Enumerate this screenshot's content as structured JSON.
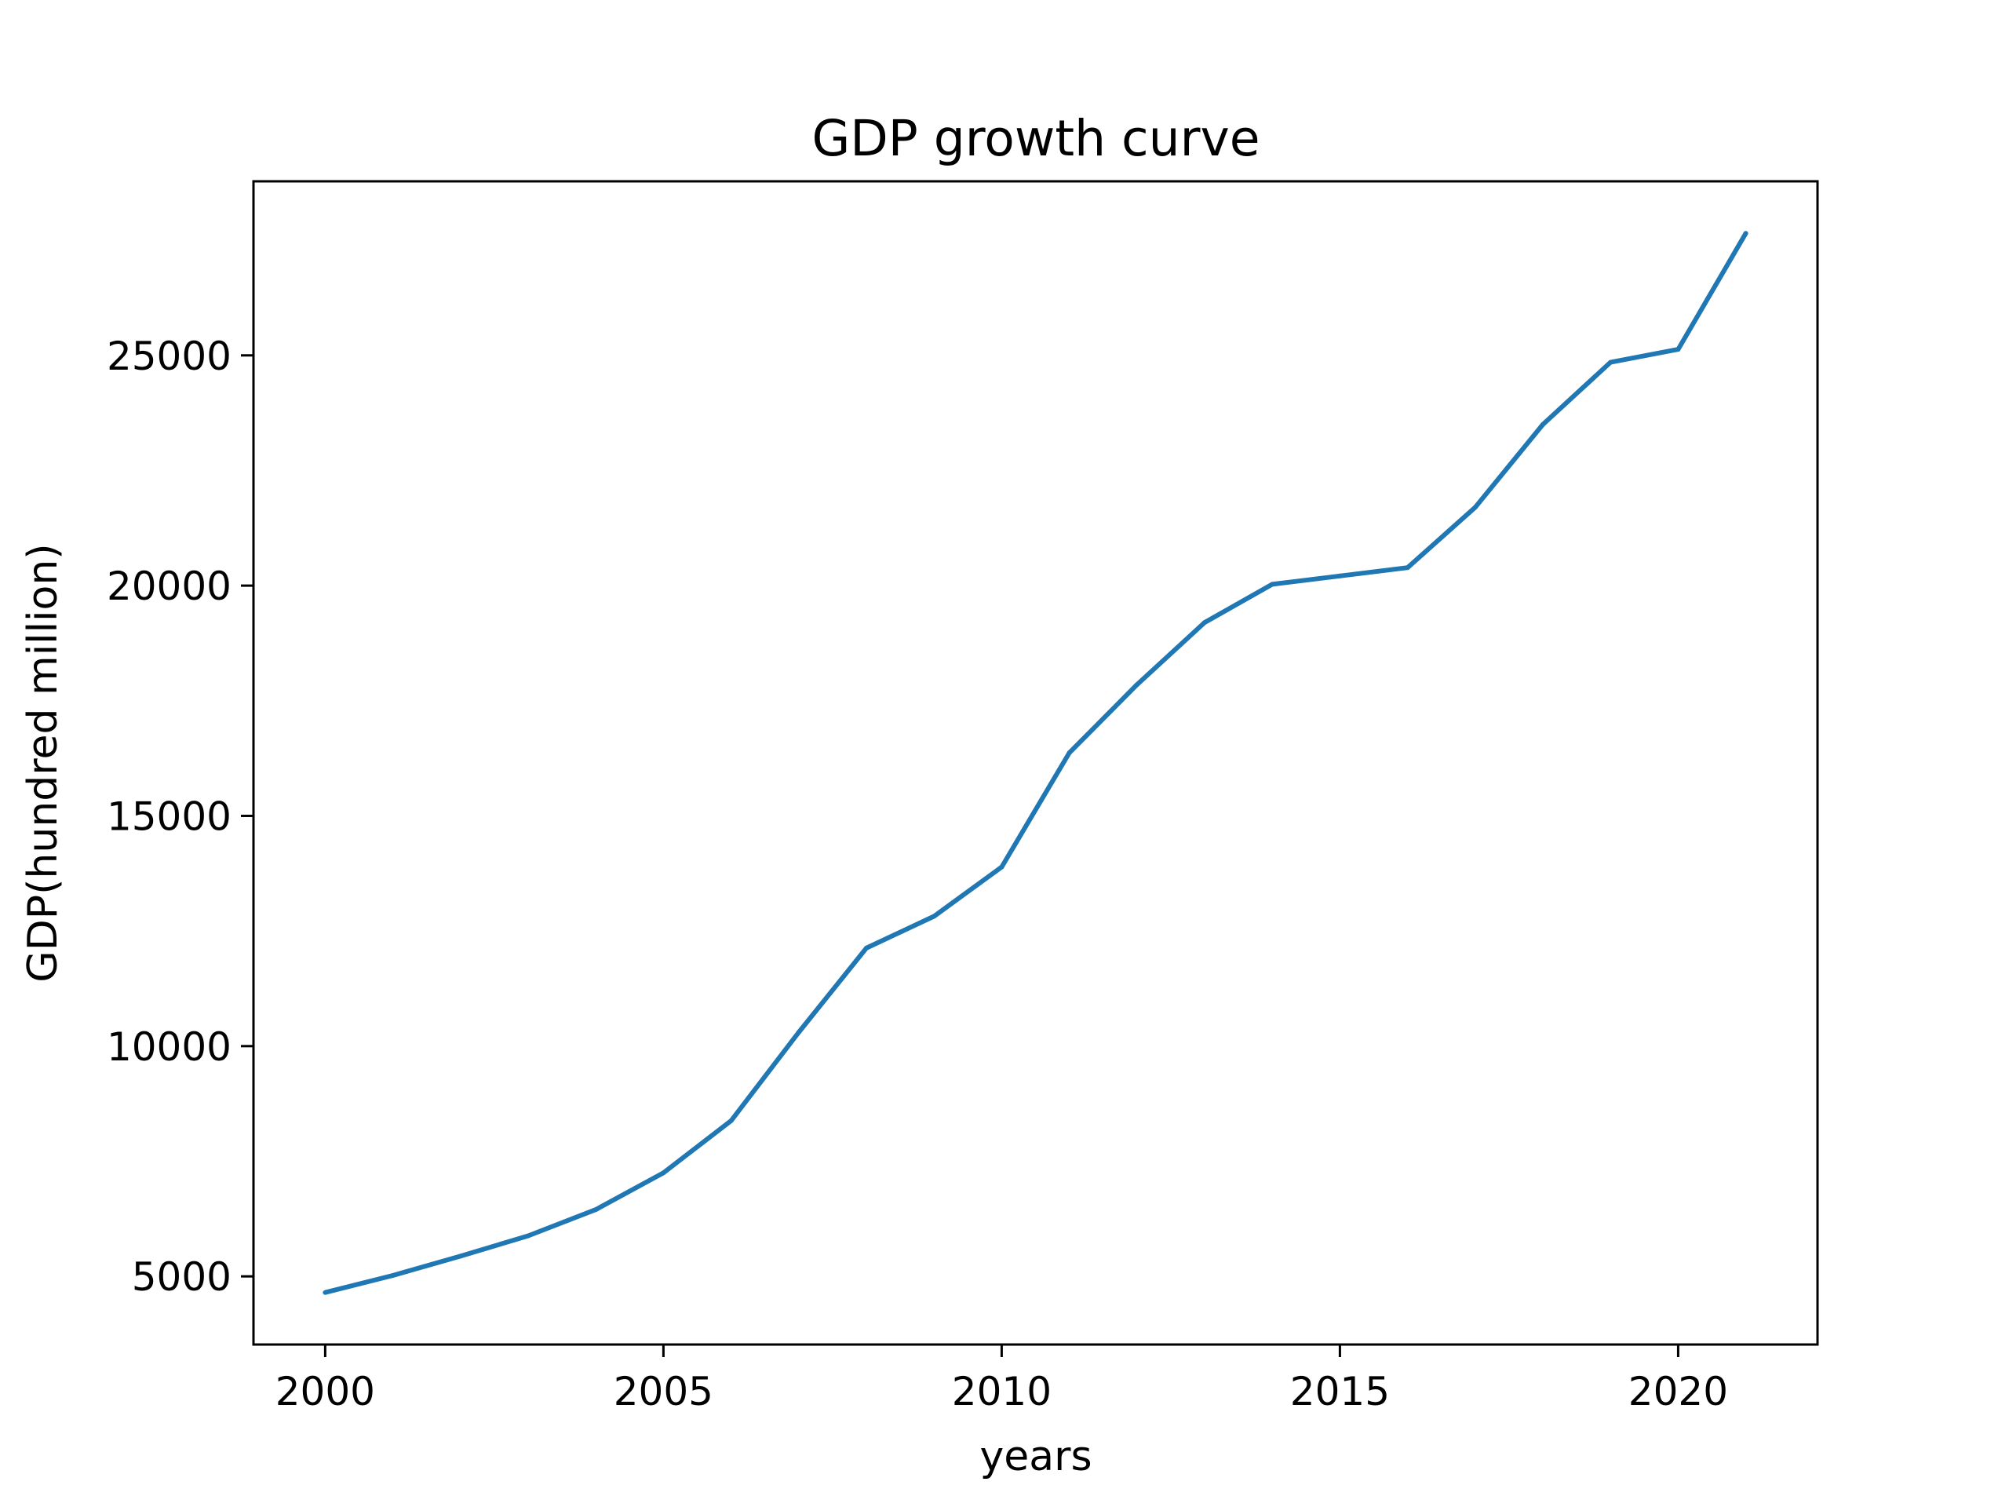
{
  "chart_data": {
    "type": "line",
    "title": "GDP growth curve",
    "xlabel": "years",
    "ylabel": "GDP(hundred million)",
    "x": [
      2000,
      2001,
      2002,
      2003,
      2004,
      2005,
      2006,
      2007,
      2008,
      2009,
      2010,
      2011,
      2012,
      2013,
      2014,
      2015,
      2016,
      2017,
      2018,
      2019,
      2020,
      2021
    ],
    "series": [
      {
        "values": [
          4650,
          5020,
          5440,
          5880,
          6450,
          7250,
          8380,
          10300,
          12130,
          12820,
          13890,
          16370,
          17850,
          19200,
          20030,
          20210,
          20390,
          21700,
          23500,
          24850,
          25130,
          27650
        ],
        "color": "#1f77b4"
      }
    ],
    "xlim": [
      1998.94,
      2022.06
    ],
    "ylim": [
      3520,
      28780
    ],
    "xticks": [
      2000,
      2005,
      2010,
      2015,
      2020
    ],
    "yticks": [
      5000,
      10000,
      15000,
      20000,
      25000
    ],
    "xtick_labels": [
      "2000",
      "2005",
      "2010",
      "2015",
      "2020"
    ],
    "ytick_labels": [
      "5000",
      "10000",
      "15000",
      "20000",
      "25000"
    ],
    "grid": false,
    "legend": "none"
  }
}
